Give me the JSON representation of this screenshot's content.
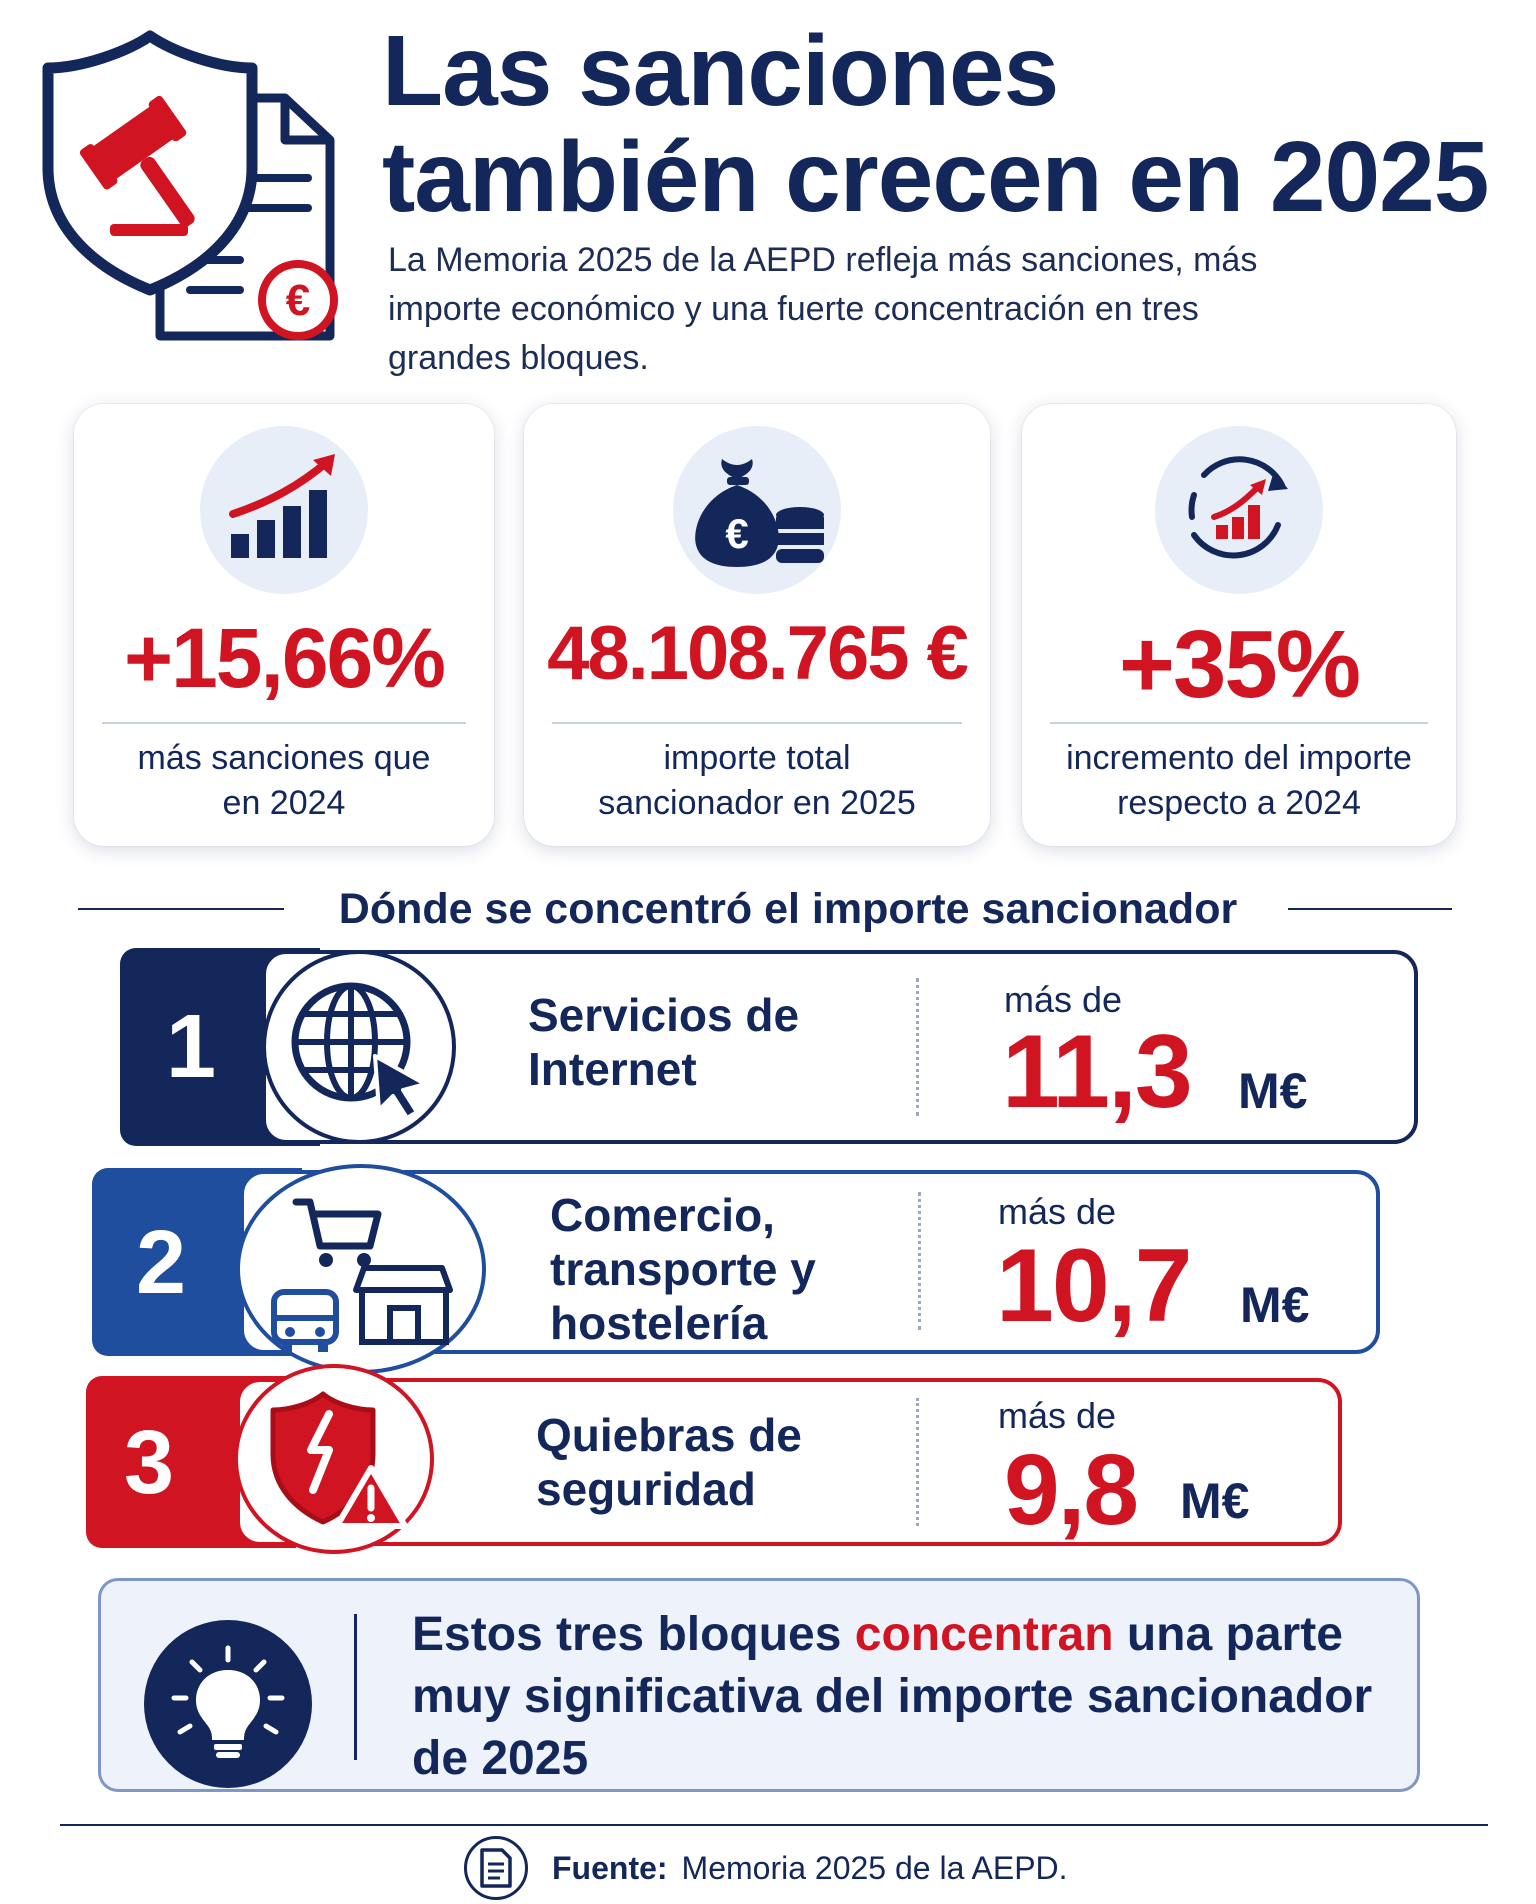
{
  "header": {
    "title_line1": "Las sanciones",
    "title_line2": "también crecen en 2025",
    "subtitle": "La Memoria 2025 de la AEPD refleja más sanciones, más importe económico y una fuerte concentración en tres grandes bloques."
  },
  "stats": [
    {
      "icon": "growth-bar-chart-icon",
      "value": "+15,66%",
      "label": "más sanciones que en 2024"
    },
    {
      "icon": "euro-money-bag-icon",
      "value": "48.108.765 €",
      "label": "importe total sancionador en 2025"
    },
    {
      "icon": "circular-growth-icon",
      "value": "+35%",
      "label": "incremento del importe respecto a 2024"
    }
  ],
  "section_title": "Dónde se concentró el importe sancionador",
  "ranking": [
    {
      "rank": "1",
      "icon": "globe-cursor-icon",
      "label": "Servicios de Internet",
      "prefix": "más de",
      "amount": "11,3",
      "unit": "M€",
      "color": "#14275a"
    },
    {
      "rank": "2",
      "icon": "commerce-transport-icon",
      "label": "Comercio, transporte y hostelería",
      "prefix": "más de",
      "amount": "10,7",
      "unit": "M€",
      "color": "#1f4e9e"
    },
    {
      "rank": "3",
      "icon": "broken-shield-warning-icon",
      "label": "Quiebras de seguridad",
      "prefix": "más de",
      "amount": "9,8",
      "unit": "M€",
      "color": "#d01422"
    }
  ],
  "callout": {
    "icon": "lightbulb-icon",
    "text_before": "Estos tres bloques ",
    "text_highlight": "concentran",
    "text_after": " una parte muy significativa del importe sancionador de 2025"
  },
  "footer": {
    "icon": "document-icon",
    "source_label": "Fuente:",
    "source_text": "Memoria 2025 de la AEPD."
  },
  "colors": {
    "navy": "#14275a",
    "blue": "#1f4e9e",
    "red": "#d01422",
    "light_bg": "#eef3fb"
  }
}
